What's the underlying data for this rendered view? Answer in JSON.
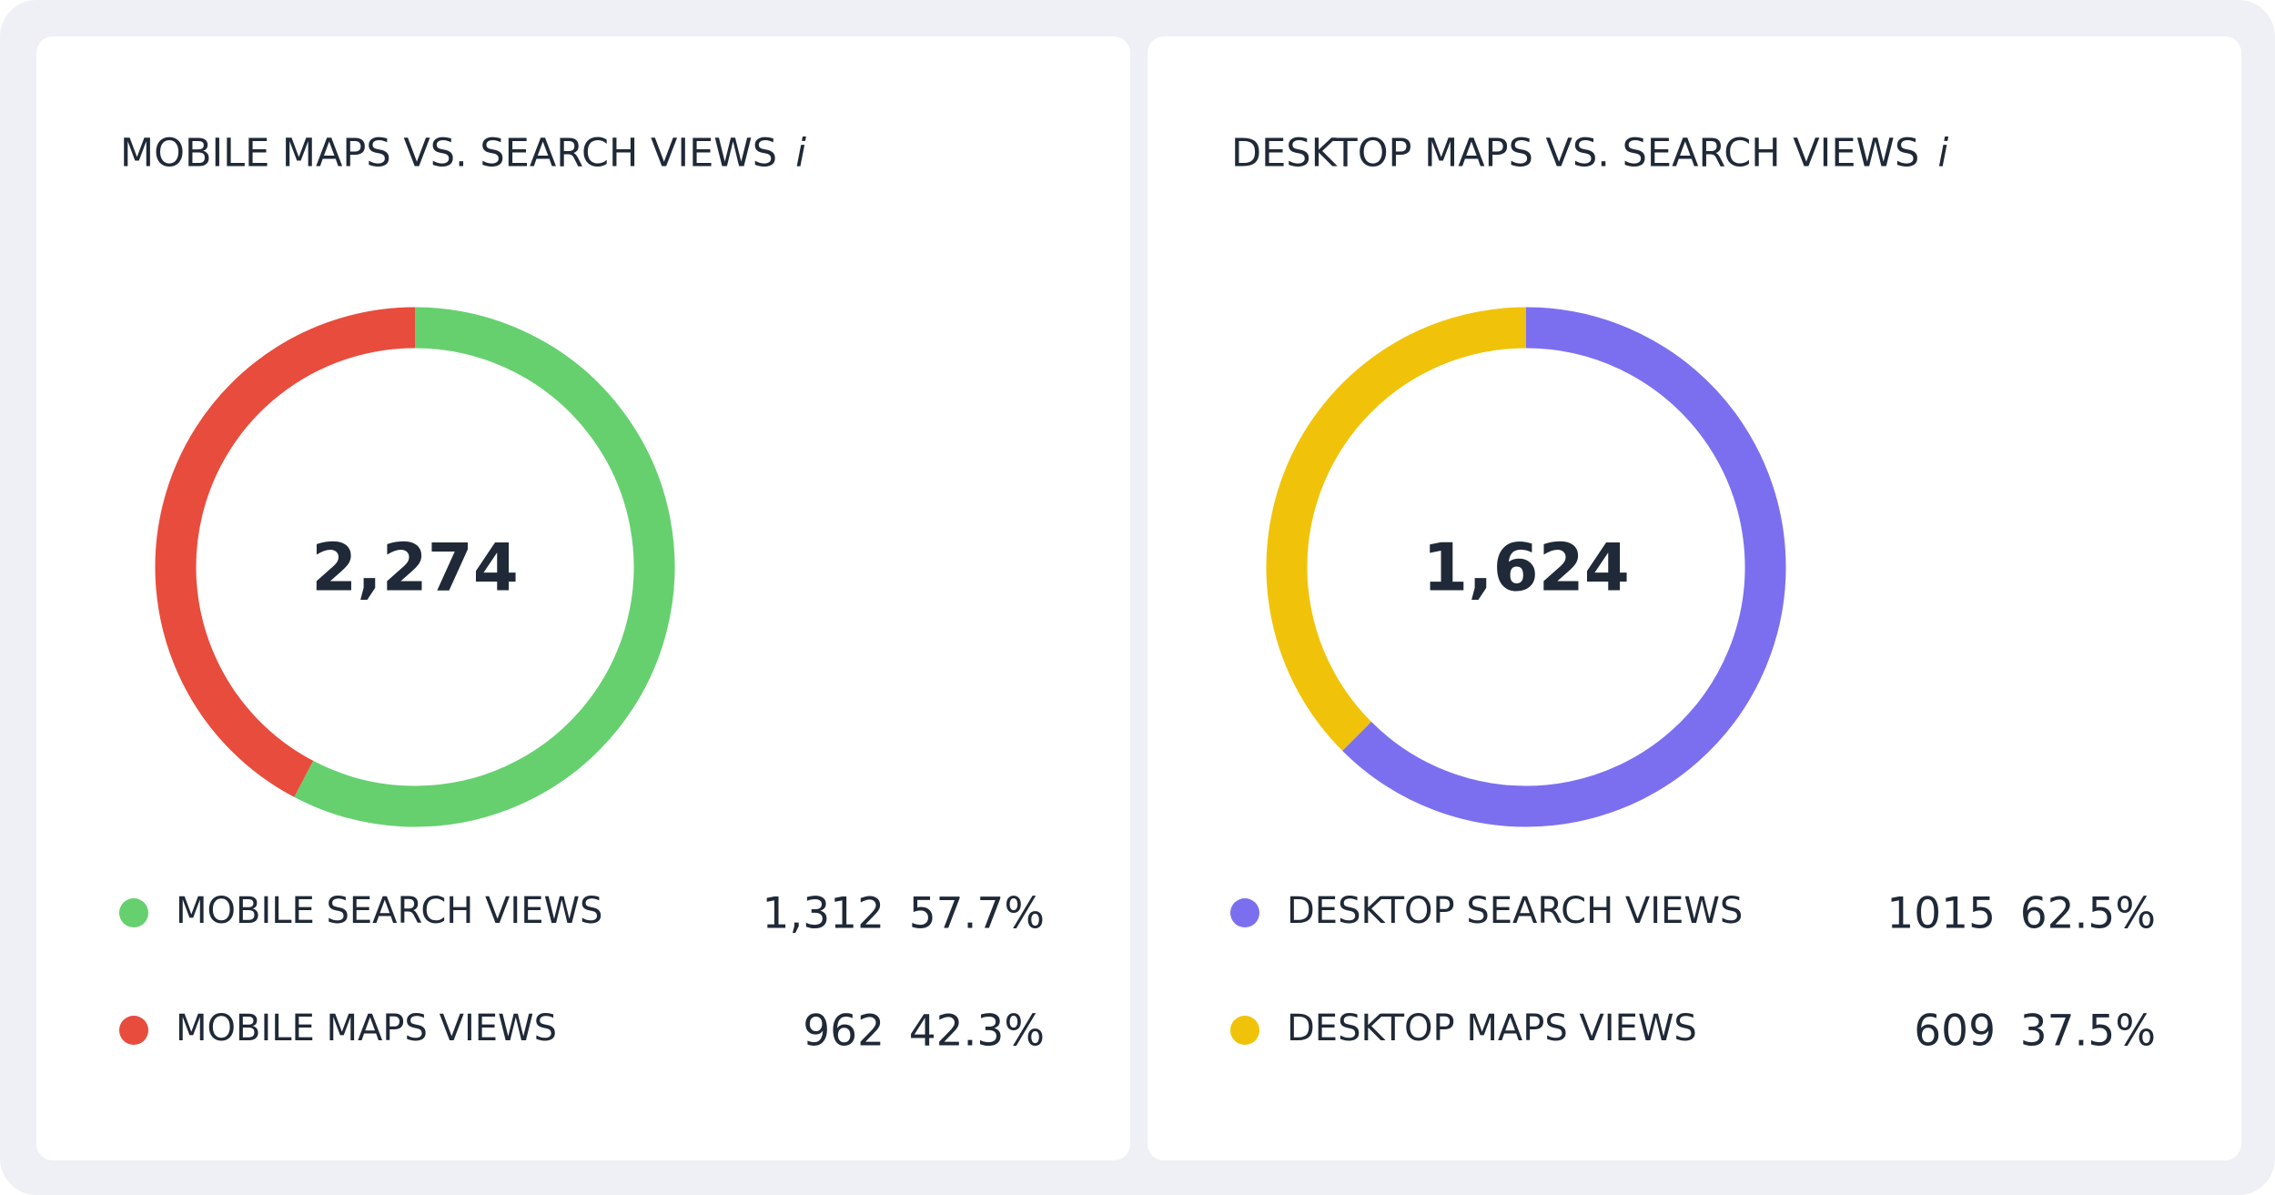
{
  "chart_data": [
    {
      "type": "donut",
      "title": "MOBILE MAPS VS. SEARCH VIEWS",
      "info": "i",
      "total": {
        "value": 2274,
        "label": "2,274"
      },
      "categories": [
        "MOBILE SEARCH VIEWS",
        "MOBILE MAPS VIEWS"
      ],
      "values": [
        1312,
        962
      ],
      "value_labels": [
        "1,312",
        "962"
      ],
      "percents": [
        {
          "value": 57.7,
          "label": "57.7%"
        },
        {
          "value": 42.3,
          "label": "42.3%"
        }
      ],
      "colors": [
        "#66d06f",
        "#e84c3d"
      ]
    },
    {
      "type": "donut",
      "title": "DESKTOP MAPS VS. SEARCH VIEWS",
      "info": "i",
      "total": {
        "value": 1624,
        "label": "1,624"
      },
      "categories": [
        "DESKTOP SEARCH VIEWS",
        "DESKTOP MAPS VIEWS"
      ],
      "values": [
        1015,
        609
      ],
      "value_labels": [
        "1015",
        "609"
      ],
      "percents": [
        {
          "value": 62.5,
          "label": "62.5%"
        },
        {
          "value": 37.5,
          "label": "37.5%"
        }
      ],
      "colors": [
        "#7b6ff0",
        "#f0c30a"
      ]
    }
  ]
}
